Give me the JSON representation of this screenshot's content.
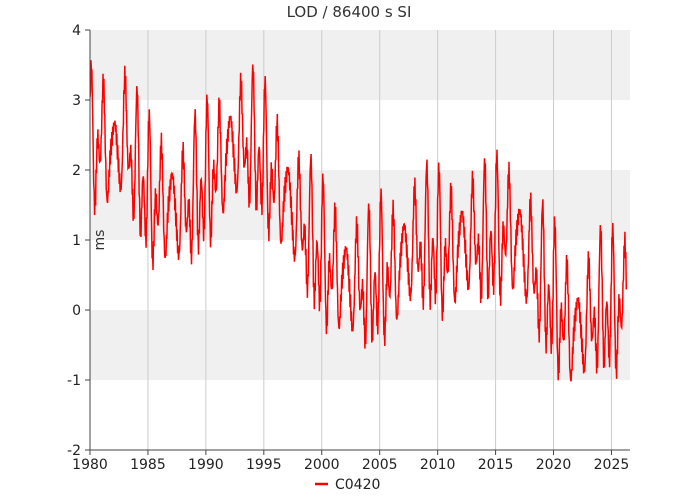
{
  "chart_data": {
    "type": "line",
    "title": "LOD / 86400 s SI",
    "xlabel": "",
    "ylabel": "ms",
    "xlim": [
      1980,
      2026.6
    ],
    "ylim": [
      -2,
      4
    ],
    "x_ticks": [
      1980,
      1985,
      1990,
      1995,
      2000,
      2005,
      2010,
      2015,
      2020,
      2025
    ],
    "y_ticks": [
      -2,
      -1,
      0,
      1,
      2,
      3,
      4
    ],
    "grid": true,
    "band_colors": [
      "#ffffff",
      "#f0f0f0"
    ],
    "legend_position": "bottom-center",
    "series": [
      {
        "name": "C0420",
        "color": "#ff0000",
        "sampling_years": 0.04,
        "x_start": 1980.0,
        "x_end": 2026.3,
        "trend": [
          [
            1980.0,
            2.3
          ],
          [
            1981.0,
            2.4
          ],
          [
            1982.0,
            2.2
          ],
          [
            1983.0,
            2.5
          ],
          [
            1984.0,
            2.0
          ],
          [
            1985.0,
            1.6
          ],
          [
            1986.0,
            1.5
          ],
          [
            1987.0,
            1.5
          ],
          [
            1988.0,
            1.4
          ],
          [
            1989.0,
            1.6
          ],
          [
            1990.0,
            1.8
          ],
          [
            1991.0,
            2.0
          ],
          [
            1992.0,
            2.3
          ],
          [
            1993.0,
            2.4
          ],
          [
            1994.0,
            2.3
          ],
          [
            1995.0,
            2.1
          ],
          [
            1996.0,
            1.8
          ],
          [
            1997.0,
            1.6
          ],
          [
            1998.0,
            1.3
          ],
          [
            1999.0,
            1.0
          ],
          [
            2000.0,
            0.7
          ],
          [
            2001.0,
            0.55
          ],
          [
            2002.0,
            0.45
          ],
          [
            2003.0,
            0.35
          ],
          [
            2004.0,
            0.3
          ],
          [
            2005.0,
            0.45
          ],
          [
            2006.0,
            0.5
          ],
          [
            2007.0,
            0.75
          ],
          [
            2008.0,
            0.9
          ],
          [
            2009.0,
            0.9
          ],
          [
            2010.0,
            0.85
          ],
          [
            2011.0,
            0.8
          ],
          [
            2012.0,
            0.95
          ],
          [
            2013.0,
            1.0
          ],
          [
            2014.0,
            0.95
          ],
          [
            2015.0,
            1.0
          ],
          [
            2016.0,
            1.1
          ],
          [
            2017.0,
            1.0
          ],
          [
            2018.0,
            0.7
          ],
          [
            2019.0,
            0.35
          ],
          [
            2020.0,
            0.1
          ],
          [
            2021.0,
            -0.2
          ],
          [
            2022.0,
            -0.3
          ],
          [
            2023.0,
            -0.15
          ],
          [
            2024.0,
            0.0
          ],
          [
            2025.0,
            -0.05
          ],
          [
            2026.3,
            0.1
          ]
        ],
        "seasonal_amplitude": 0.55,
        "semiannual_amplitude": 0.3,
        "fortnightly_amplitude": 0.4,
        "monthly_amplitude": 0.15
      }
    ]
  }
}
